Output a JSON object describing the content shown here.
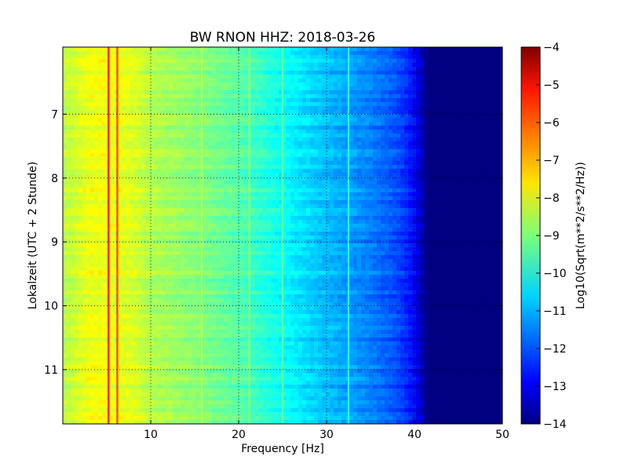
{
  "chart_data": {
    "type": "heatmap",
    "title": "BW RNON HHZ: 2018-03-26",
    "xlabel": "Frequency [Hz]",
    "ylabel": "Lokalzeit (UTC + 2 Stunde)",
    "colorbar_label": "Log10(Sqrt(m**2/s**2/Hz))",
    "colormap": "jet",
    "xlim": [
      0,
      50
    ],
    "ylim": [
      5.95,
      11.85
    ],
    "y_inverted": true,
    "clim": [
      -14,
      -4
    ],
    "x_ticks": [
      10,
      20,
      30,
      40,
      50
    ],
    "x_tick_labels": [
      "10",
      "20",
      "30",
      "40",
      "50"
    ],
    "y_ticks": [
      7,
      8,
      9,
      10,
      11
    ],
    "y_tick_labels": [
      "7",
      "8",
      "9",
      "10",
      "11"
    ],
    "colorbar_ticks": [
      -4,
      -5,
      -6,
      -7,
      -8,
      -9,
      -10,
      -11,
      -12,
      -13,
      -14
    ],
    "colorbar_tick_labels": [
      "−4",
      "−5",
      "−6",
      "−7",
      "−8",
      "−9",
      "−10",
      "−11",
      "−12",
      "−13",
      "−14"
    ],
    "grid": "dotted",
    "spectrum_profile": [
      {
        "frequency_hz": 0.5,
        "log10_value": -8.4
      },
      {
        "frequency_hz": 3,
        "log10_value": -7.9
      },
      {
        "frequency_hz": 5,
        "log10_value": -7.9
      },
      {
        "frequency_hz": 8,
        "log10_value": -8.1
      },
      {
        "frequency_hz": 10,
        "log10_value": -8.5
      },
      {
        "frequency_hz": 15,
        "log10_value": -8.9
      },
      {
        "frequency_hz": 20,
        "log10_value": -9.4
      },
      {
        "frequency_hz": 25,
        "log10_value": -10.2
      },
      {
        "frequency_hz": 30,
        "log10_value": -10.9
      },
      {
        "frequency_hz": 35,
        "log10_value": -11.5
      },
      {
        "frequency_hz": 38,
        "log10_value": -12.0
      },
      {
        "frequency_hz": 40,
        "log10_value": -12.7
      },
      {
        "frequency_hz": 41.5,
        "log10_value": -14
      },
      {
        "frequency_hz": 50,
        "log10_value": -14
      }
    ],
    "spectral_lines": [
      {
        "frequency_hz": 5.2,
        "log10_value": -5.3
      },
      {
        "frequency_hz": 6.2,
        "log10_value": -5.6
      },
      {
        "frequency_hz": 15.8,
        "log10_value": -8.4
      },
      {
        "frequency_hz": 21.2,
        "log10_value": -8.8
      },
      {
        "frequency_hz": 25.0,
        "log10_value": -9.2
      },
      {
        "frequency_hz": 32.5,
        "log10_value": -9.8
      }
    ]
  }
}
